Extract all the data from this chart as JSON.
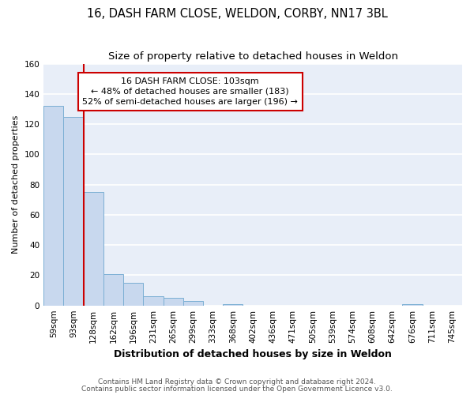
{
  "title": "16, DASH FARM CLOSE, WELDON, CORBY, NN17 3BL",
  "subtitle": "Size of property relative to detached houses in Weldon",
  "xlabel": "Distribution of detached houses by size in Weldon",
  "ylabel": "Number of detached properties",
  "categories": [
    "59sqm",
    "93sqm",
    "128sqm",
    "162sqm",
    "196sqm",
    "231sqm",
    "265sqm",
    "299sqm",
    "333sqm",
    "368sqm",
    "402sqm",
    "436sqm",
    "471sqm",
    "505sqm",
    "539sqm",
    "574sqm",
    "608sqm",
    "642sqm",
    "676sqm",
    "711sqm",
    "745sqm"
  ],
  "values": [
    132,
    125,
    75,
    21,
    15,
    6,
    5,
    3,
    0,
    1,
    0,
    0,
    0,
    0,
    0,
    0,
    0,
    0,
    1,
    0,
    0
  ],
  "bar_color": "#c8d8ee",
  "bar_edge_color": "#7bafd4",
  "bar_linewidth": 0.7,
  "background_color": "#ffffff",
  "plot_bg_color": "#e8eef8",
  "grid_color": "#ffffff",
  "red_line_index": 1.5,
  "annotation_text": "16 DASH FARM CLOSE: 103sqm\n← 48% of detached houses are smaller (183)\n52% of semi-detached houses are larger (196) →",
  "annotation_box_color": "#ffffff",
  "annotation_box_edge_color": "#cc0000",
  "footer1": "Contains HM Land Registry data © Crown copyright and database right 2024.",
  "footer2": "Contains public sector information licensed under the Open Government Licence v3.0.",
  "ylim": [
    0,
    160
  ],
  "yticks": [
    0,
    20,
    40,
    60,
    80,
    100,
    120,
    140,
    160
  ],
  "title_fontsize": 10.5,
  "subtitle_fontsize": 9.5,
  "xlabel_fontsize": 9,
  "ylabel_fontsize": 8,
  "tick_fontsize": 7.5,
  "annotation_fontsize": 8,
  "footer_fontsize": 6.5
}
